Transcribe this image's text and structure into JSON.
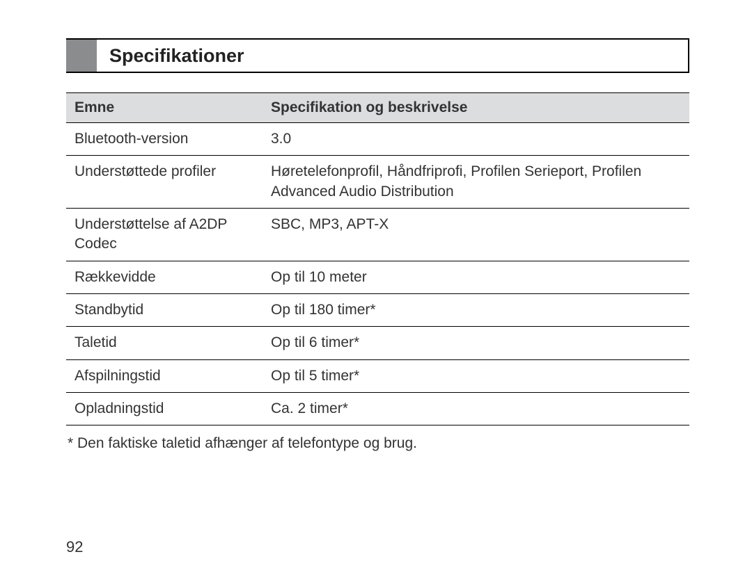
{
  "heading": {
    "title": "Specifikationer",
    "block_color": "#8a8c8e",
    "border_color": "#000000"
  },
  "table": {
    "header_bg": "#dcdddf",
    "columns": [
      "Emne",
      "Specifikation og beskrivelse"
    ],
    "rows": [
      {
        "emne": "Bluetooth-version",
        "spec": "3.0"
      },
      {
        "emne": "Understøttede profiler",
        "spec": "Høretelefonprofil, Håndfriprofi, Profilen Serieport, Profilen Advanced Audio Distribution"
      },
      {
        "emne": "Understøttelse af A2DP Codec",
        "spec": "SBC, MP3, APT-X"
      },
      {
        "emne": "Rækkevidde",
        "spec": "Op til 10 meter"
      },
      {
        "emne": "Standbytid",
        "spec": "Op til 180 timer*"
      },
      {
        "emne": "Taletid",
        "spec": "Op til 6 timer*"
      },
      {
        "emne": "Afspilningstid",
        "spec": "Op til 5 timer*"
      },
      {
        "emne": "Opladningstid",
        "spec": "Ca. 2 timer*"
      }
    ]
  },
  "footnote": "* Den faktiske taletid afhænger af telefontype og brug.",
  "page_number": "92"
}
